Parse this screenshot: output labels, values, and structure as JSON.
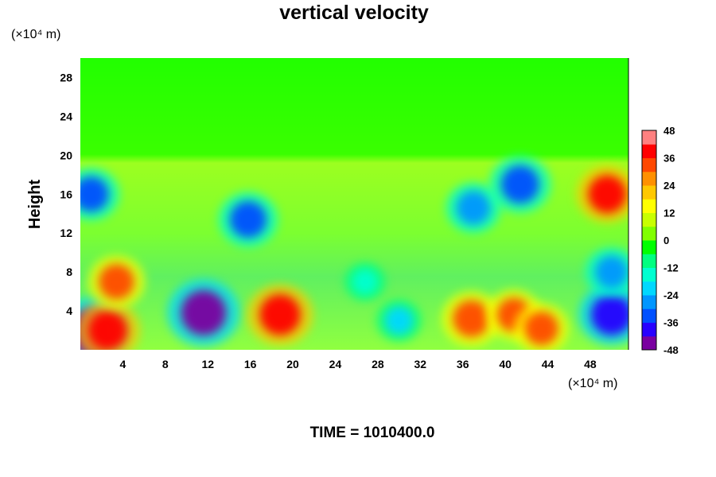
{
  "chart_data": {
    "type": "heatmap",
    "title": "vertical velocity",
    "ylabel": "Height",
    "y_unit": "(×10⁴ m)",
    "x_unit": "(×10⁴ m)",
    "footer": "TIME = 1010400.0",
    "xlim": [
      0,
      51.6
    ],
    "ylim": [
      0,
      30
    ],
    "xticks": [
      "4",
      "8",
      "12",
      "16",
      "20",
      "24",
      "28",
      "32",
      "36",
      "40",
      "44",
      "48"
    ],
    "yticks": [
      "4",
      "8",
      "12",
      "16",
      "20",
      "24",
      "28"
    ],
    "colorbar": {
      "min": -48,
      "max": 48,
      "ticks": [
        "48",
        "36",
        "24",
        "12",
        "0",
        "-12",
        "-24",
        "-36",
        "-48"
      ],
      "colors": [
        "#7a00a0",
        "#2800ff",
        "#0050ff",
        "#0096ff",
        "#00d8ff",
        "#00ffd0",
        "#00ff80",
        "#00ff00",
        "#80ff00",
        "#c8ff00",
        "#ffff00",
        "#ffc800",
        "#ff9000",
        "#ff4800",
        "#ff0000",
        "#ff8080"
      ]
    },
    "features": [
      {
        "x": 1.0,
        "y": 1.8,
        "value": -48
      },
      {
        "x": 1.0,
        "y": 16.0,
        "value": -32
      },
      {
        "x": 2.6,
        "y": 2.0,
        "value": 38
      },
      {
        "x": 3.4,
        "y": 7.0,
        "value": 32
      },
      {
        "x": 11.6,
        "y": 3.8,
        "value": -46
      },
      {
        "x": 15.8,
        "y": 13.4,
        "value": -34
      },
      {
        "x": 18.8,
        "y": 3.6,
        "value": 40
      },
      {
        "x": 26.8,
        "y": 7.0,
        "value": -18
      },
      {
        "x": 30.0,
        "y": 3.0,
        "value": -22
      },
      {
        "x": 36.8,
        "y": 3.2,
        "value": 34
      },
      {
        "x": 40.8,
        "y": 3.6,
        "value": 30
      },
      {
        "x": 43.4,
        "y": 2.2,
        "value": 30
      },
      {
        "x": 37.0,
        "y": 14.6,
        "value": -30
      },
      {
        "x": 41.4,
        "y": 17.0,
        "value": -36
      },
      {
        "x": 50.0,
        "y": 3.6,
        "value": -40
      },
      {
        "x": 50.0,
        "y": 8.0,
        "value": -28
      },
      {
        "x": 49.6,
        "y": 16.0,
        "value": 36
      }
    ]
  }
}
